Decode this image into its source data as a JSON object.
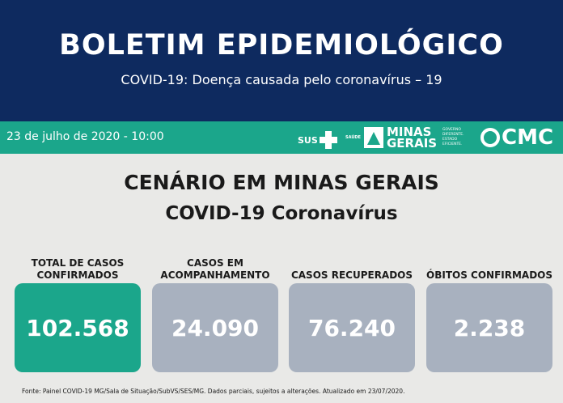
{
  "header": {
    "title": "BOLETIM EPIDEMIOLÓGICO",
    "subtitle": "COVID-19: Doença causada pelo coronavírus – 19"
  },
  "band": {
    "date": "23 de julho de 2020 - 10:00",
    "logos": {
      "sus": "SUS",
      "saude": "SAÚDE",
      "minas_gerais": "MINAS GERAIS",
      "governo": "GOVERNO DIFERENTE. ESTADO EFICIENTE.",
      "cmc": "CMC"
    }
  },
  "main": {
    "title": "CENÁRIO EM MINAS GERAIS",
    "subtitle": "COVID-19 Coronavírus",
    "stats": [
      {
        "label": "TOTAL DE CASOS CONFIRMADOS",
        "value": "102.568",
        "color": "#1ba68b"
      },
      {
        "label": "CASOS EM ACOMPANHAMENTO",
        "value": "24.090",
        "color": "#a8b1bf"
      },
      {
        "label": "CASOS RECUPERADOS",
        "value": "76.240",
        "color": "#a8b1bf"
      },
      {
        "label": "ÓBITOS CONFIRMADOS",
        "value": "2.238",
        "color": "#a8b1bf"
      }
    ]
  },
  "footer": {
    "source": "Fonte: Painel COVID-19 MG/Sala de Situação/SubVS/SES/MG. Dados parciais, sujeitos a alterações. Atualizado em 23/07/2020."
  }
}
